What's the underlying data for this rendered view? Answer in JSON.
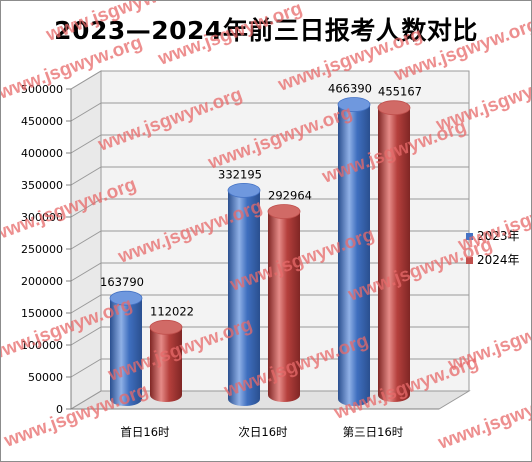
{
  "chart_data": {
    "type": "bar",
    "title": "2023—2024年前三日报考人数对比",
    "categories": [
      "首日16时",
      "次日16时",
      "第三日16时"
    ],
    "series": [
      {
        "name": "2023年",
        "values": [
          163790,
          332195,
          466390
        ],
        "color": "#4472c4"
      },
      {
        "name": "2024年",
        "values": [
          112022,
          292964,
          455167
        ],
        "color": "#c0504d"
      }
    ],
    "ylim": [
      0,
      500000
    ],
    "yticks": [
      0,
      50000,
      100000,
      150000,
      200000,
      250000,
      300000,
      350000,
      400000,
      450000,
      500000
    ],
    "grid": true,
    "legend": "right",
    "style": "3d-cylinder"
  },
  "watermark": {
    "text": "www.jsgwyw.org"
  }
}
